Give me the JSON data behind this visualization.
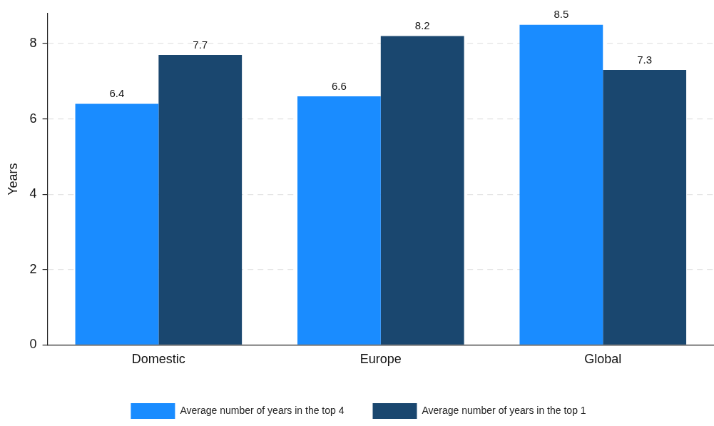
{
  "chart_data": {
    "type": "bar",
    "ylabel": "Years",
    "categories": [
      "Domestic",
      "Europe",
      "Global"
    ],
    "series": [
      {
        "name": "Average number of years in the top 4",
        "color": "#1a8cff",
        "values": [
          6.4,
          6.6,
          8.5
        ]
      },
      {
        "name": "Average number of years in the top 1",
        "color": "#1a476f",
        "values": [
          7.7,
          8.2,
          7.3
        ]
      }
    ],
    "ylim": [
      0,
      8.8
    ],
    "yticks": [
      0,
      2,
      4,
      6,
      8
    ],
    "grid": "y",
    "legend": "bottom",
    "data_labels": true
  }
}
